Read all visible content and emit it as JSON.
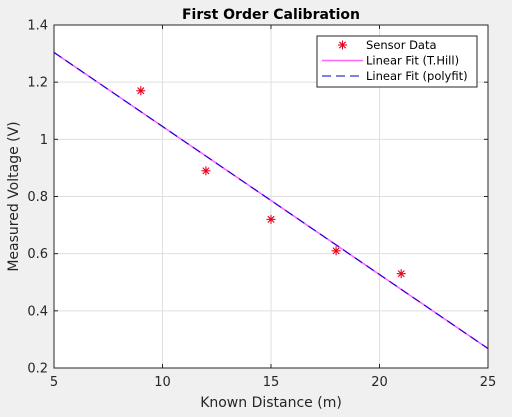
{
  "chart_data": {
    "type": "scatter",
    "title": "First Order Calibration",
    "xlabel": "Known Distance (m)",
    "ylabel": "Measured Voltage (V)",
    "xlim": [
      5,
      25
    ],
    "ylim": [
      0.2,
      1.4
    ],
    "xticks": [
      "5",
      "10",
      "15",
      "20",
      "25"
    ],
    "yticks": [
      "0.2",
      "0.4",
      "0.6",
      "0.8",
      "1",
      "1.2",
      "1.4"
    ],
    "grid": true,
    "legend_position": "top-right",
    "series": [
      {
        "name": "Sensor Data",
        "type": "scatter",
        "marker": "asterisk",
        "color": "#e8001c",
        "x": [
          9,
          12,
          15,
          18,
          21
        ],
        "y": [
          1.17,
          0.89,
          0.72,
          0.61,
          0.53
        ]
      },
      {
        "name": "Linear Fit (T.Hill)",
        "type": "line",
        "style": "solid",
        "color": "#ff66ff",
        "x": [
          5,
          25
        ],
        "y": [
          1.304,
          0.268
        ]
      },
      {
        "name": "Linear Fit (polyfit)",
        "type": "line",
        "style": "dashed",
        "color": "#0000cc",
        "x": [
          5,
          25
        ],
        "y": [
          1.304,
          0.268
        ]
      }
    ]
  }
}
